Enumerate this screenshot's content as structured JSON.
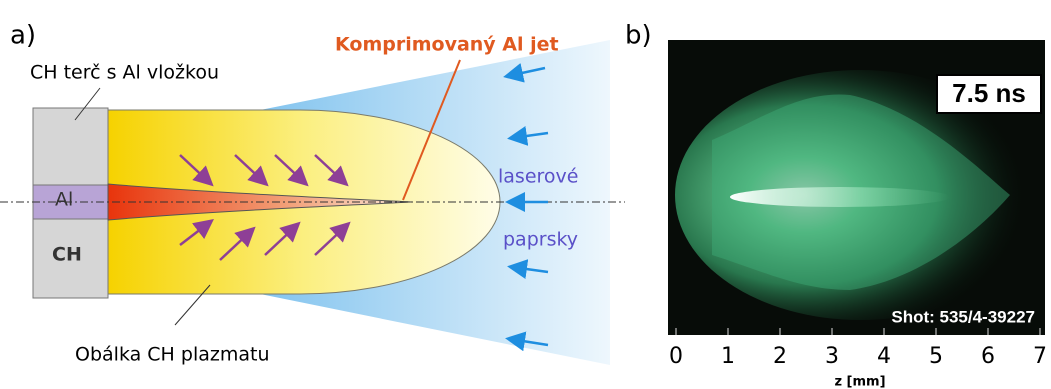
{
  "panel_a": {
    "label": "a)",
    "target_label": "CH terč s Al vložkou",
    "jet_label": "Komprimovaný Al jet",
    "al_label": "Al",
    "ch_label": "CH",
    "laser_label_1": "laserové",
    "laser_label_2": "paprsky",
    "envelope_label": "Obálka CH plazmatu"
  },
  "panel_b": {
    "label": "b)",
    "time_label": "7.5 ns",
    "shot_label": "Shot: 535/4-39227",
    "xlabel": "z [mm]",
    "xlim": [
      0,
      7
    ],
    "xticks": [
      0,
      1,
      2,
      3,
      4,
      5,
      6,
      7
    ]
  }
}
